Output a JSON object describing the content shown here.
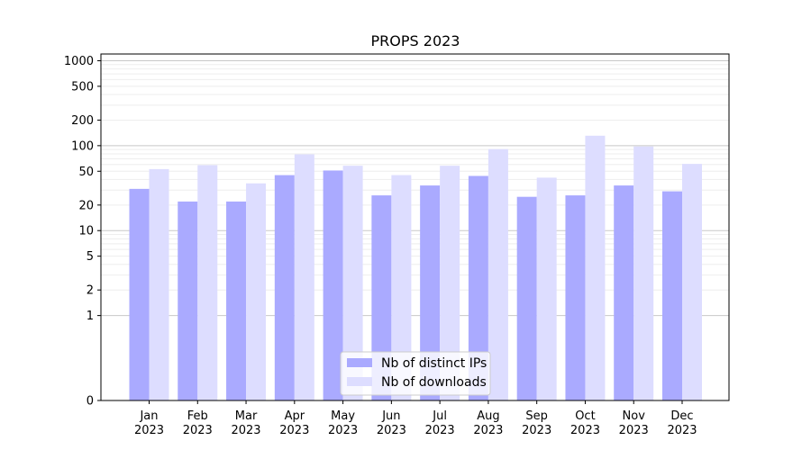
{
  "chart_data": {
    "type": "bar",
    "title": "PROPS 2023",
    "xlabel": "",
    "ylabel": "",
    "y_scale": "symlog",
    "ylim": [
      0,
      1200
    ],
    "y_ticks": [
      "0",
      "1",
      "2",
      "5",
      "10",
      "20",
      "50",
      "100",
      "200",
      "500",
      "1000"
    ],
    "categories": [
      {
        "month": "Jan",
        "year": "2023"
      },
      {
        "month": "Feb",
        "year": "2023"
      },
      {
        "month": "Mar",
        "year": "2023"
      },
      {
        "month": "Apr",
        "year": "2023"
      },
      {
        "month": "May",
        "year": "2023"
      },
      {
        "month": "Jun",
        "year": "2023"
      },
      {
        "month": "Jul",
        "year": "2023"
      },
      {
        "month": "Aug",
        "year": "2023"
      },
      {
        "month": "Sep",
        "year": "2023"
      },
      {
        "month": "Oct",
        "year": "2023"
      },
      {
        "month": "Nov",
        "year": "2023"
      },
      {
        "month": "Dec",
        "year": "2023"
      }
    ],
    "series": [
      {
        "name": "Nb of distinct IPs",
        "color": "#aaaaff",
        "values": [
          31,
          22,
          22,
          45,
          51,
          26,
          34,
          44,
          25,
          26,
          34,
          29
        ]
      },
      {
        "name": "Nb of downloads",
        "color": "#ddddff",
        "values": [
          53,
          59,
          36,
          79,
          58,
          45,
          58,
          91,
          42,
          131,
          98,
          61
        ]
      }
    ],
    "grid": true,
    "legend_position": "lower center"
  }
}
